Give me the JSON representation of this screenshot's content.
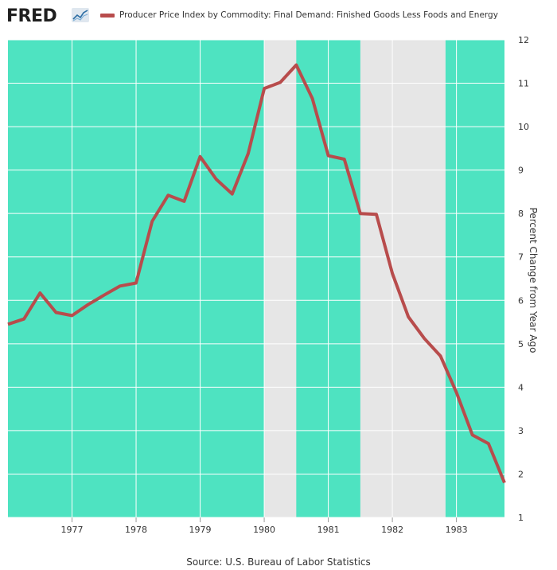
{
  "header": {
    "logo_text": "FRED",
    "logo_icon": "line-chart-icon",
    "legend_label": "Producer Price Index by Commodity: Final Demand: Finished Goods Less Foods and Energy"
  },
  "source": "Source: U.S. Bureau of Labor Statistics",
  "chart_data": {
    "type": "line",
    "title": "",
    "ylabel": "Percent Change from Year Ago",
    "xlabel": "",
    "xlim": [
      1976.0,
      1983.75
    ],
    "ylim": [
      1,
      12
    ],
    "x_ticks": [
      "1977",
      "1978",
      "1979",
      "1980",
      "1981",
      "1982",
      "1983"
    ],
    "y_ticks": [
      "1",
      "2",
      "3",
      "4",
      "5",
      "6",
      "7",
      "8",
      "9",
      "10",
      "11",
      "12"
    ],
    "grid": true,
    "background_color": "#4ee3c1",
    "recession_color": "#e6e6e6",
    "line_color": "#b84c4c",
    "recessions": [
      [
        1980.0,
        1980.5
      ],
      [
        1981.5,
        1982.83
      ]
    ],
    "series": [
      {
        "name": "Producer Price Index by Commodity: Final Demand: Finished Goods Less Foods and Energy",
        "x": [
          1976.0,
          1976.25,
          1976.5,
          1976.75,
          1977.0,
          1977.25,
          1977.5,
          1977.75,
          1978.0,
          1978.25,
          1978.5,
          1978.75,
          1979.0,
          1979.25,
          1979.5,
          1979.75,
          1980.0,
          1980.25,
          1980.5,
          1980.75,
          1981.0,
          1981.25,
          1981.5,
          1981.75,
          1982.0,
          1982.25,
          1982.5,
          1982.75,
          1983.0,
          1983.25,
          1983.5,
          1983.75
        ],
        "values": [
          5.45,
          5.57,
          6.17,
          5.72,
          5.65,
          5.9,
          6.12,
          6.33,
          6.4,
          7.82,
          8.42,
          8.28,
          9.31,
          8.79,
          8.45,
          9.38,
          10.88,
          11.02,
          11.42,
          10.65,
          9.33,
          9.25,
          8.0,
          7.98,
          6.62,
          5.62,
          5.12,
          4.72,
          3.88,
          2.9,
          2.7,
          1.8
        ]
      }
    ]
  }
}
